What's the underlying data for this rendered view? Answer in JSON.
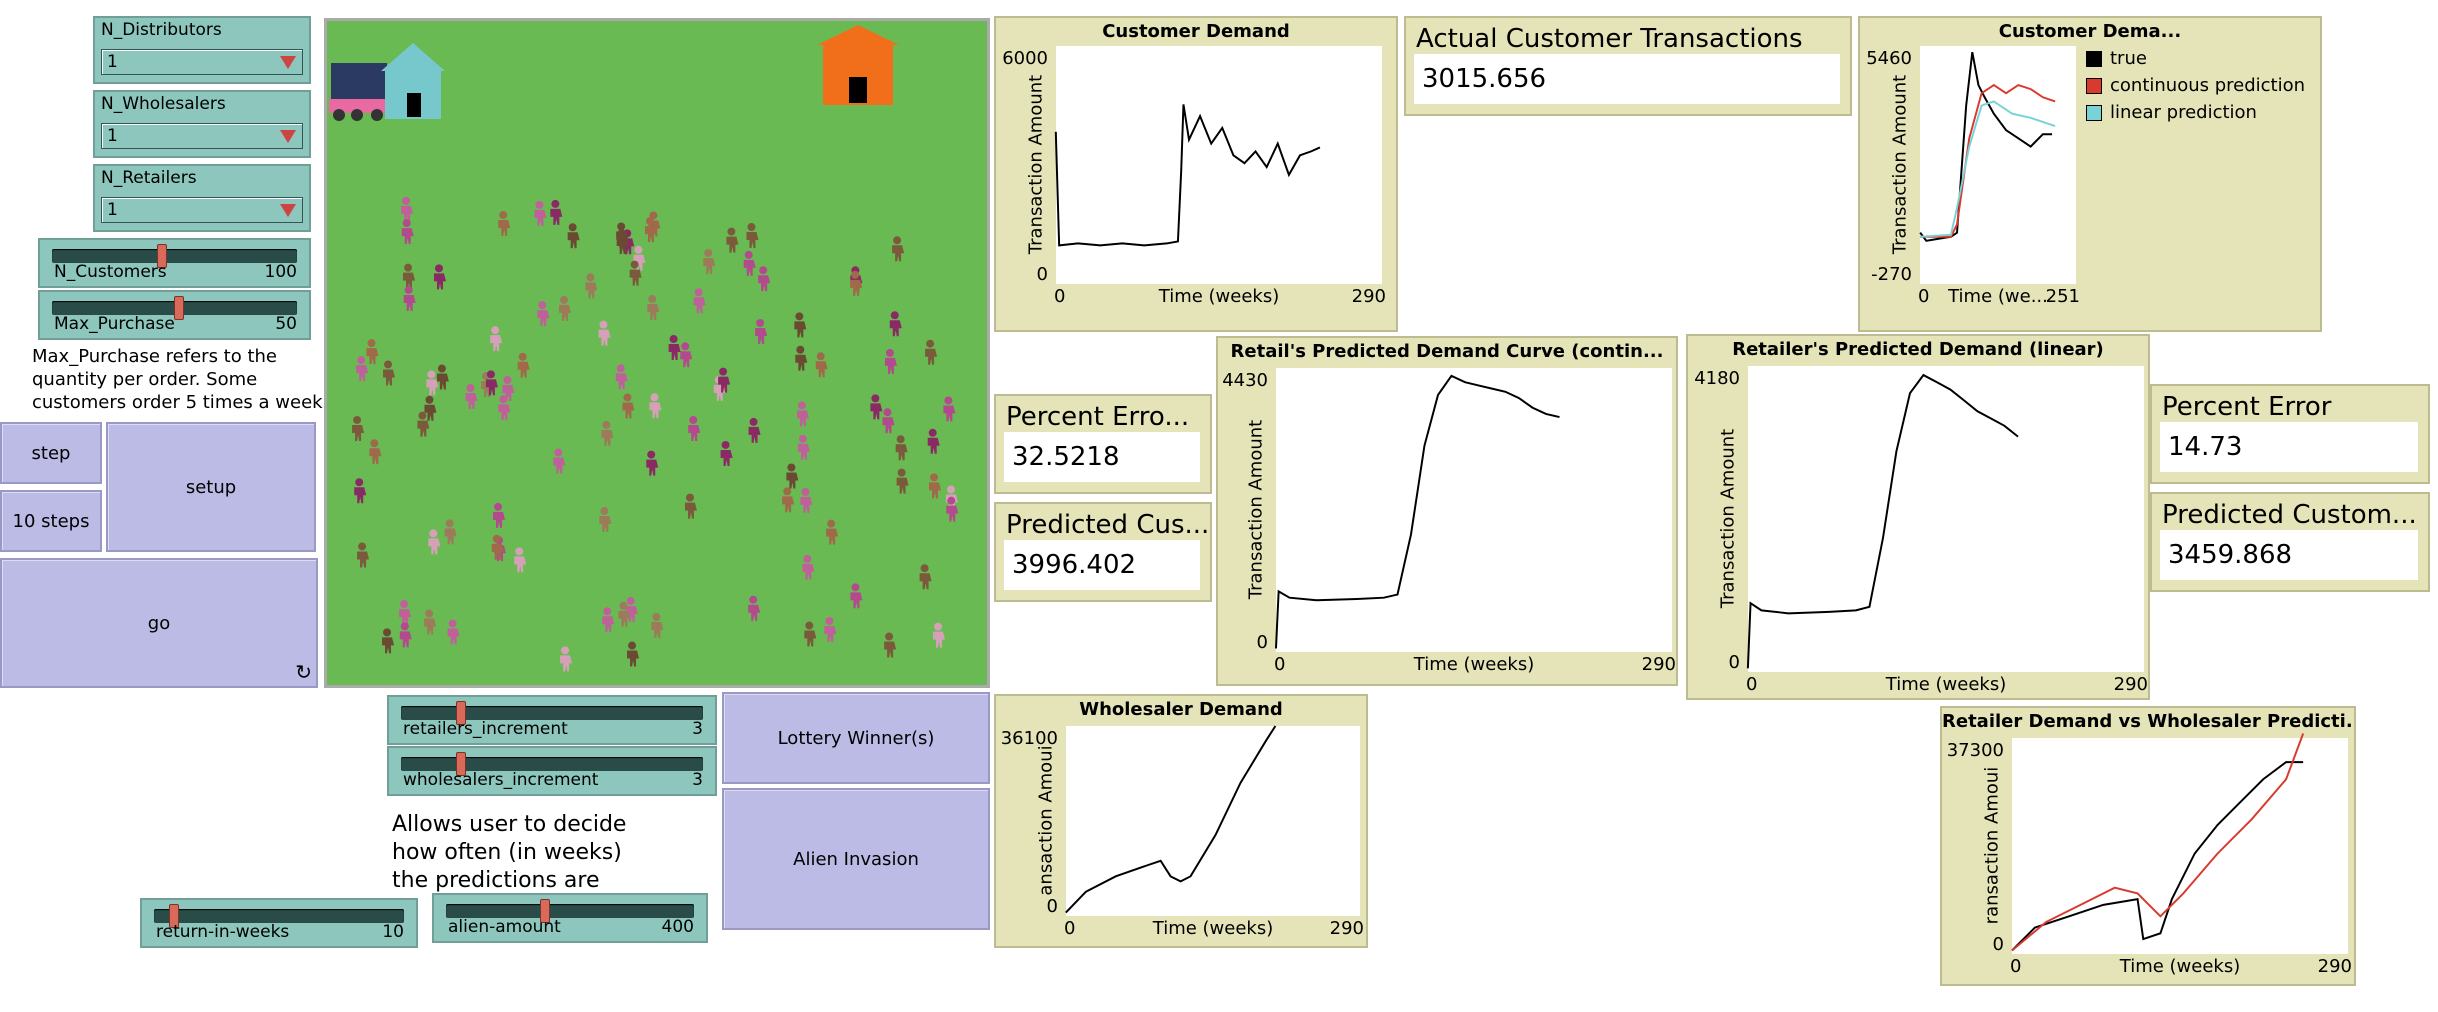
{
  "choosers": [
    {
      "label": "N_Distributors",
      "value": "1"
    },
    {
      "label": "N_Wholesalers",
      "value": "1"
    },
    {
      "label": "N_Retailers",
      "value": "1"
    }
  ],
  "sliders": {
    "n_customers": {
      "label": "N_Customers",
      "value": "100",
      "fraction": 0.45
    },
    "max_purchase": {
      "label": "Max_Purchase",
      "value": "50",
      "fraction": 0.52
    },
    "retailers_increment": {
      "label": "retailers_increment",
      "value": "3",
      "fraction": 0.2
    },
    "wholesalers_increment": {
      "label": "wholesalers_increment",
      "value": "3",
      "fraction": 0.2
    },
    "return_in_weeks": {
      "label": "return-in-weeks",
      "value": "10",
      "fraction": 0.08
    },
    "alien_amount": {
      "label": "alien-amount",
      "value": "400",
      "fraction": 0.4
    }
  },
  "notes": {
    "max_purchase": [
      "Max_Purchase refers to the",
      "quantity per order. Some",
      "customers order 5 times a week"
    ],
    "predictions": [
      "Allows user to decide",
      "how often (in weeks)",
      "the predictions are"
    ]
  },
  "buttons": {
    "step": "step",
    "ten_steps": "10 steps",
    "setup": "setup",
    "go": "go",
    "lottery": "Lottery Winner(s)",
    "alien": "Alien Invasion"
  },
  "monitors": {
    "actual": {
      "label": "Actual Customer Transactions",
      "value": "3015.656"
    },
    "percent_error_1": {
      "label": "Percent Erro...",
      "value": "32.5218"
    },
    "predicted_1": {
      "label": "Predicted Cus...",
      "value": "3996.402"
    },
    "percent_error_2": {
      "label": "Percent Error",
      "value": "14.73"
    },
    "predicted_2": {
      "label": "Predicted Custom...",
      "value": "3459.868"
    }
  },
  "colors": {
    "world_bg": "#6aba54",
    "house_blue": "#76c8cc",
    "house_orange": "#f16e1b",
    "truck": "#2a3a62"
  },
  "plots": {
    "customer_demand": {
      "title": "Customer Demand",
      "ylabel": "Transaction Amount",
      "xlabel": "Time (weeks)",
      "xmin": "0",
      "xmax": "290",
      "ymin": "0",
      "ymax": "6000"
    },
    "customer_demand_2": {
      "title": "Customer Dema...",
      "ylabel": "Transaction Amount",
      "xlabel": "Time (we...",
      "xmin": "0",
      "xmax": "251",
      "ymin": "-270",
      "ymax": "5460",
      "legend": [
        {
          "name": "true",
          "color": "#000000"
        },
        {
          "name": "continuous prediction",
          "color": "#d93a2f"
        },
        {
          "name": "linear prediction",
          "color": "#79d3d6"
        }
      ]
    },
    "retail_continuous": {
      "title": "Retail's Predicted Demand Curve (contin...",
      "ylabel": "Transaction Amount",
      "xlabel": "Time (weeks)",
      "xmin": "0",
      "xmax": "290",
      "ymin": "0",
      "ymax": "4430"
    },
    "retail_linear": {
      "title": "Retailer's Predicted Demand (linear)",
      "ylabel": "Transaction Amount",
      "xlabel": "Time (weeks)",
      "xmin": "0",
      "xmax": "290",
      "ymin": "0",
      "ymax": "4180"
    },
    "wholesaler_demand": {
      "title": "Wholesaler Demand",
      "ylabel": "ansaction Amoui",
      "xlabel": "Time (weeks)",
      "xmin": "0",
      "xmax": "290",
      "ymin": "0",
      "ymax": "36100"
    },
    "retailer_vs_wholesaler": {
      "title": "Retailer Demand vs Wholesaler Predicti...",
      "ylabel": "ransaction Amoui",
      "xlabel": "Time (weeks)",
      "xmin": "0",
      "xmax": "290",
      "ymin": "0",
      "ymax": "37300"
    }
  },
  "chart_data": [
    {
      "type": "line",
      "title": "Customer Demand",
      "xlabel": "Time (weeks)",
      "ylabel": "Transaction Amount",
      "xlim": [
        0,
        290
      ],
      "ylim": [
        0,
        6000
      ],
      "series": [
        {
          "points": [
            [
              0,
              3800
            ],
            [
              3,
              900
            ],
            [
              20,
              950
            ],
            [
              40,
              900
            ],
            [
              60,
              950
            ],
            [
              80,
              900
            ],
            [
              100,
              950
            ],
            [
              110,
              1000
            ],
            [
              113,
              2800
            ],
            [
              115,
              4500
            ],
            [
              120,
              3600
            ],
            [
              130,
              4200
            ],
            [
              140,
              3500
            ],
            [
              150,
              3900
            ],
            [
              160,
              3200
            ],
            [
              170,
              3000
            ],
            [
              180,
              3300
            ],
            [
              190,
              2900
            ],
            [
              200,
              3500
            ],
            [
              210,
              2700
            ],
            [
              220,
              3200
            ],
            [
              230,
              3300
            ],
            [
              238,
              3400
            ]
          ]
        }
      ]
    },
    {
      "type": "line",
      "title": "Customer Dema...",
      "xlabel": "Time (we...",
      "ylabel": "Transaction Amount",
      "xlim": [
        0,
        251
      ],
      "ylim": [
        -270,
        5460
      ],
      "series": [
        {
          "name": "true",
          "points": [
            [
              0,
              900
            ],
            [
              10,
              700
            ],
            [
              30,
              750
            ],
            [
              50,
              800
            ],
            [
              60,
              900
            ],
            [
              75,
              4000
            ],
            [
              85,
              5300
            ],
            [
              95,
              4500
            ],
            [
              105,
              4200
            ],
            [
              120,
              3800
            ],
            [
              140,
              3400
            ],
            [
              160,
              3200
            ],
            [
              180,
              3000
            ],
            [
              200,
              3300
            ],
            [
              215,
              3300
            ]
          ]
        },
        {
          "name": "continuous prediction",
          "points": [
            [
              0,
              800
            ],
            [
              50,
              800
            ],
            [
              60,
              1100
            ],
            [
              80,
              3200
            ],
            [
              100,
              4300
            ],
            [
              120,
              4500
            ],
            [
              140,
              4300
            ],
            [
              160,
              4500
            ],
            [
              180,
              4400
            ],
            [
              200,
              4200
            ],
            [
              220,
              4100
            ]
          ]
        },
        {
          "name": "linear prediction",
          "points": [
            [
              0,
              800
            ],
            [
              50,
              850
            ],
            [
              60,
              1500
            ],
            [
              80,
              3000
            ],
            [
              100,
              4000
            ],
            [
              120,
              4100
            ],
            [
              150,
              3800
            ],
            [
              180,
              3700
            ],
            [
              200,
              3600
            ],
            [
              220,
              3500
            ]
          ]
        }
      ]
    },
    {
      "type": "line",
      "title": "Retail's Predicted Demand Curve (contin...",
      "xlabel": "Time (weeks)",
      "ylabel": "Transaction Amount",
      "xlim": [
        0,
        290
      ],
      "ylim": [
        0,
        4430
      ],
      "series": [
        {
          "points": [
            [
              0,
              0
            ],
            [
              2,
              900
            ],
            [
              10,
              800
            ],
            [
              30,
              760
            ],
            [
              60,
              780
            ],
            [
              80,
              800
            ],
            [
              90,
              850
            ],
            [
              100,
              1800
            ],
            [
              110,
              3200
            ],
            [
              120,
              4000
            ],
            [
              130,
              4300
            ],
            [
              140,
              4200
            ],
            [
              150,
              4150
            ],
            [
              160,
              4100
            ],
            [
              170,
              4050
            ],
            [
              180,
              3950
            ],
            [
              190,
              3800
            ],
            [
              200,
              3700
            ],
            [
              210,
              3650
            ]
          ]
        }
      ]
    },
    {
      "type": "line",
      "title": "Retailer's Predicted Demand (linear)",
      "xlabel": "Time (weeks)",
      "ylabel": "Transaction Amount",
      "xlim": [
        0,
        290
      ],
      "ylim": [
        0,
        4180
      ],
      "series": [
        {
          "points": [
            [
              0,
              0
            ],
            [
              2,
              900
            ],
            [
              10,
              800
            ],
            [
              30,
              760
            ],
            [
              60,
              780
            ],
            [
              80,
              800
            ],
            [
              90,
              850
            ],
            [
              100,
              1800
            ],
            [
              110,
              3000
            ],
            [
              120,
              3800
            ],
            [
              130,
              4050
            ],
            [
              140,
              3950
            ],
            [
              150,
              3850
            ],
            [
              160,
              3700
            ],
            [
              170,
              3550
            ],
            [
              180,
              3450
            ],
            [
              190,
              3350
            ],
            [
              200,
              3200
            ]
          ]
        }
      ]
    },
    {
      "type": "line",
      "title": "Wholesaler Demand",
      "xlabel": "Time (weeks)",
      "ylabel": "ansaction Amoui",
      "xlim": [
        0,
        290
      ],
      "ylim": [
        0,
        36100
      ],
      "series": [
        {
          "points": [
            [
              0,
              0
            ],
            [
              20,
              4000
            ],
            [
              50,
              7000
            ],
            [
              80,
              9000
            ],
            [
              95,
              10000
            ],
            [
              105,
              7000
            ],
            [
              115,
              6000
            ],
            [
              125,
              7000
            ],
            [
              150,
              15000
            ],
            [
              175,
              25000
            ],
            [
              200,
              33000
            ],
            [
              210,
              36000
            ]
          ]
        }
      ]
    },
    {
      "type": "line",
      "title": "Retailer Demand vs Wholesaler Predicti...",
      "xlabel": "Time (weeks)",
      "ylabel": "ransaction Amoui",
      "xlim": [
        0,
        290
      ],
      "ylim": [
        0,
        37300
      ],
      "series": [
        {
          "points": [
            [
              0,
              0
            ],
            [
              20,
              4000
            ],
            [
              50,
              6000
            ],
            [
              80,
              8000
            ],
            [
              110,
              9000
            ],
            [
              115,
              2000
            ],
            [
              130,
              3000
            ],
            [
              140,
              9000
            ],
            [
              160,
              17000
            ],
            [
              180,
              22000
            ],
            [
              200,
              26000
            ],
            [
              220,
              30000
            ],
            [
              240,
              33000
            ],
            [
              255,
              33000
            ]
          ]
        },
        {
          "points": [
            [
              0,
              0
            ],
            [
              30,
              5000
            ],
            [
              60,
              8000
            ],
            [
              90,
              11000
            ],
            [
              110,
              10000
            ],
            [
              130,
              6000
            ],
            [
              150,
              10000
            ],
            [
              180,
              17000
            ],
            [
              210,
              23000
            ],
            [
              240,
              30000
            ],
            [
              255,
              38000
            ]
          ]
        }
      ]
    }
  ]
}
